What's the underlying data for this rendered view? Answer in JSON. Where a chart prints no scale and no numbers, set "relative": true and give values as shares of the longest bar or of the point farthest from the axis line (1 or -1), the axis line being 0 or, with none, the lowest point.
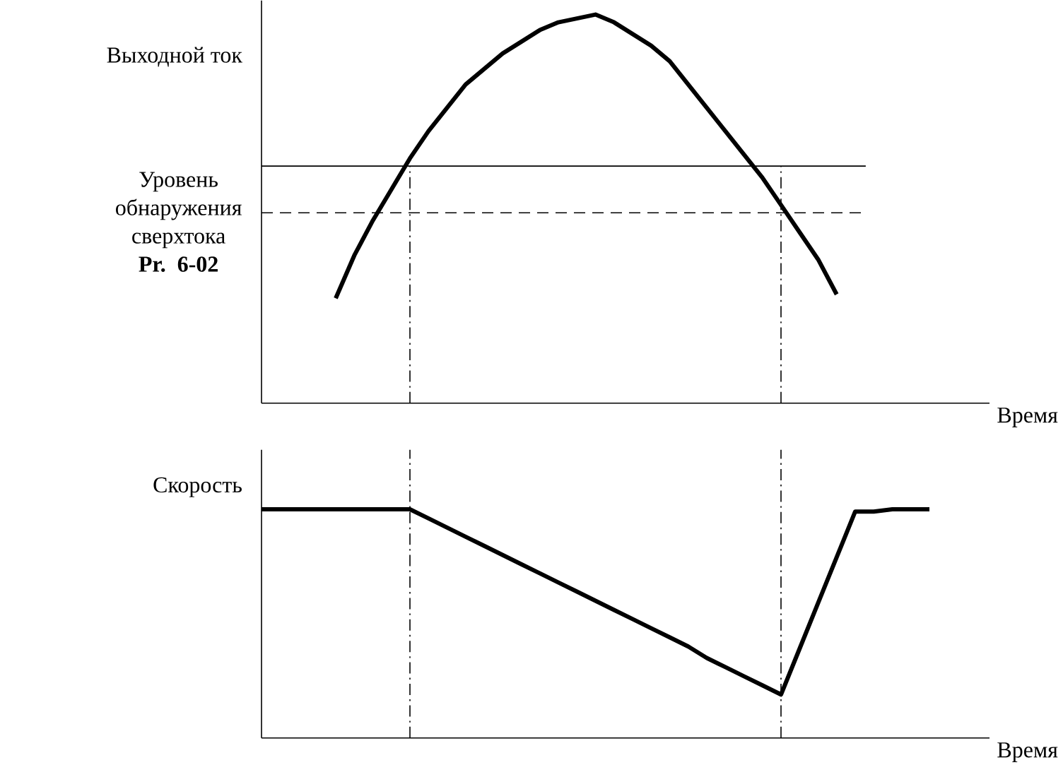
{
  "chart_data": [
    {
      "type": "line",
      "relative": true,
      "ylabel": "Выходной ток",
      "xlabel": "Время",
      "color": "#000000",
      "categories": [
        null,
        null,
        null,
        null,
        null,
        null,
        null,
        null,
        null,
        null,
        null,
        null,
        null,
        null,
        null,
        null,
        null,
        null,
        null,
        null,
        null,
        null,
        null,
        null,
        null,
        null,
        null,
        null,
        null,
        null,
        null,
        null,
        null,
        null,
        null,
        null,
        null
      ],
      "values": [
        null,
        null,
        null,
        null,
        0.27,
        0.38,
        0.47,
        0.55,
        0.63,
        0.7,
        0.76,
        0.82,
        0.86,
        0.9,
        0.93,
        0.96,
        0.98,
        0.99,
        1.0,
        0.98,
        0.95,
        0.92,
        0.88,
        0.82,
        0.76,
        0.7,
        0.64,
        0.58,
        0.51,
        0.44,
        0.37,
        0.28,
        null,
        null,
        null,
        null,
        null
      ],
      "ref_lines": [
        {
          "axis": "y",
          "value": 0.61,
          "label": "Уровень обнаружения сверхтока **Pr. 6-02**",
          "line_style": "solid"
        },
        {
          "axis": "y",
          "value": 0.49,
          "line_style": "dashed"
        }
      ]
    },
    {
      "type": "line",
      "relative": true,
      "ylabel": "Скорость",
      "xlabel": "Время",
      "color": "#000000",
      "categories": [
        null,
        null,
        null,
        null,
        null,
        null,
        null,
        null,
        null,
        null,
        null,
        null,
        null,
        null,
        null,
        null,
        null,
        null,
        null,
        null,
        null,
        null,
        null,
        null,
        null,
        null,
        null,
        null,
        null,
        null,
        null,
        null,
        null,
        null,
        null,
        null,
        null
      ],
      "values": [
        1,
        1,
        1,
        1,
        1,
        1,
        1,
        1,
        1,
        0.96,
        0.92,
        0.88,
        0.84,
        0.8,
        0.76,
        0.72,
        0.68,
        0.64,
        0.6,
        0.56,
        0.52,
        0.48,
        0.44,
        0.4,
        0.35,
        0.31,
        0.27,
        0.23,
        0.19,
        0.39,
        0.59,
        0.79,
        0.99,
        0.99,
        1,
        1,
        1
      ]
    }
  ]
}
